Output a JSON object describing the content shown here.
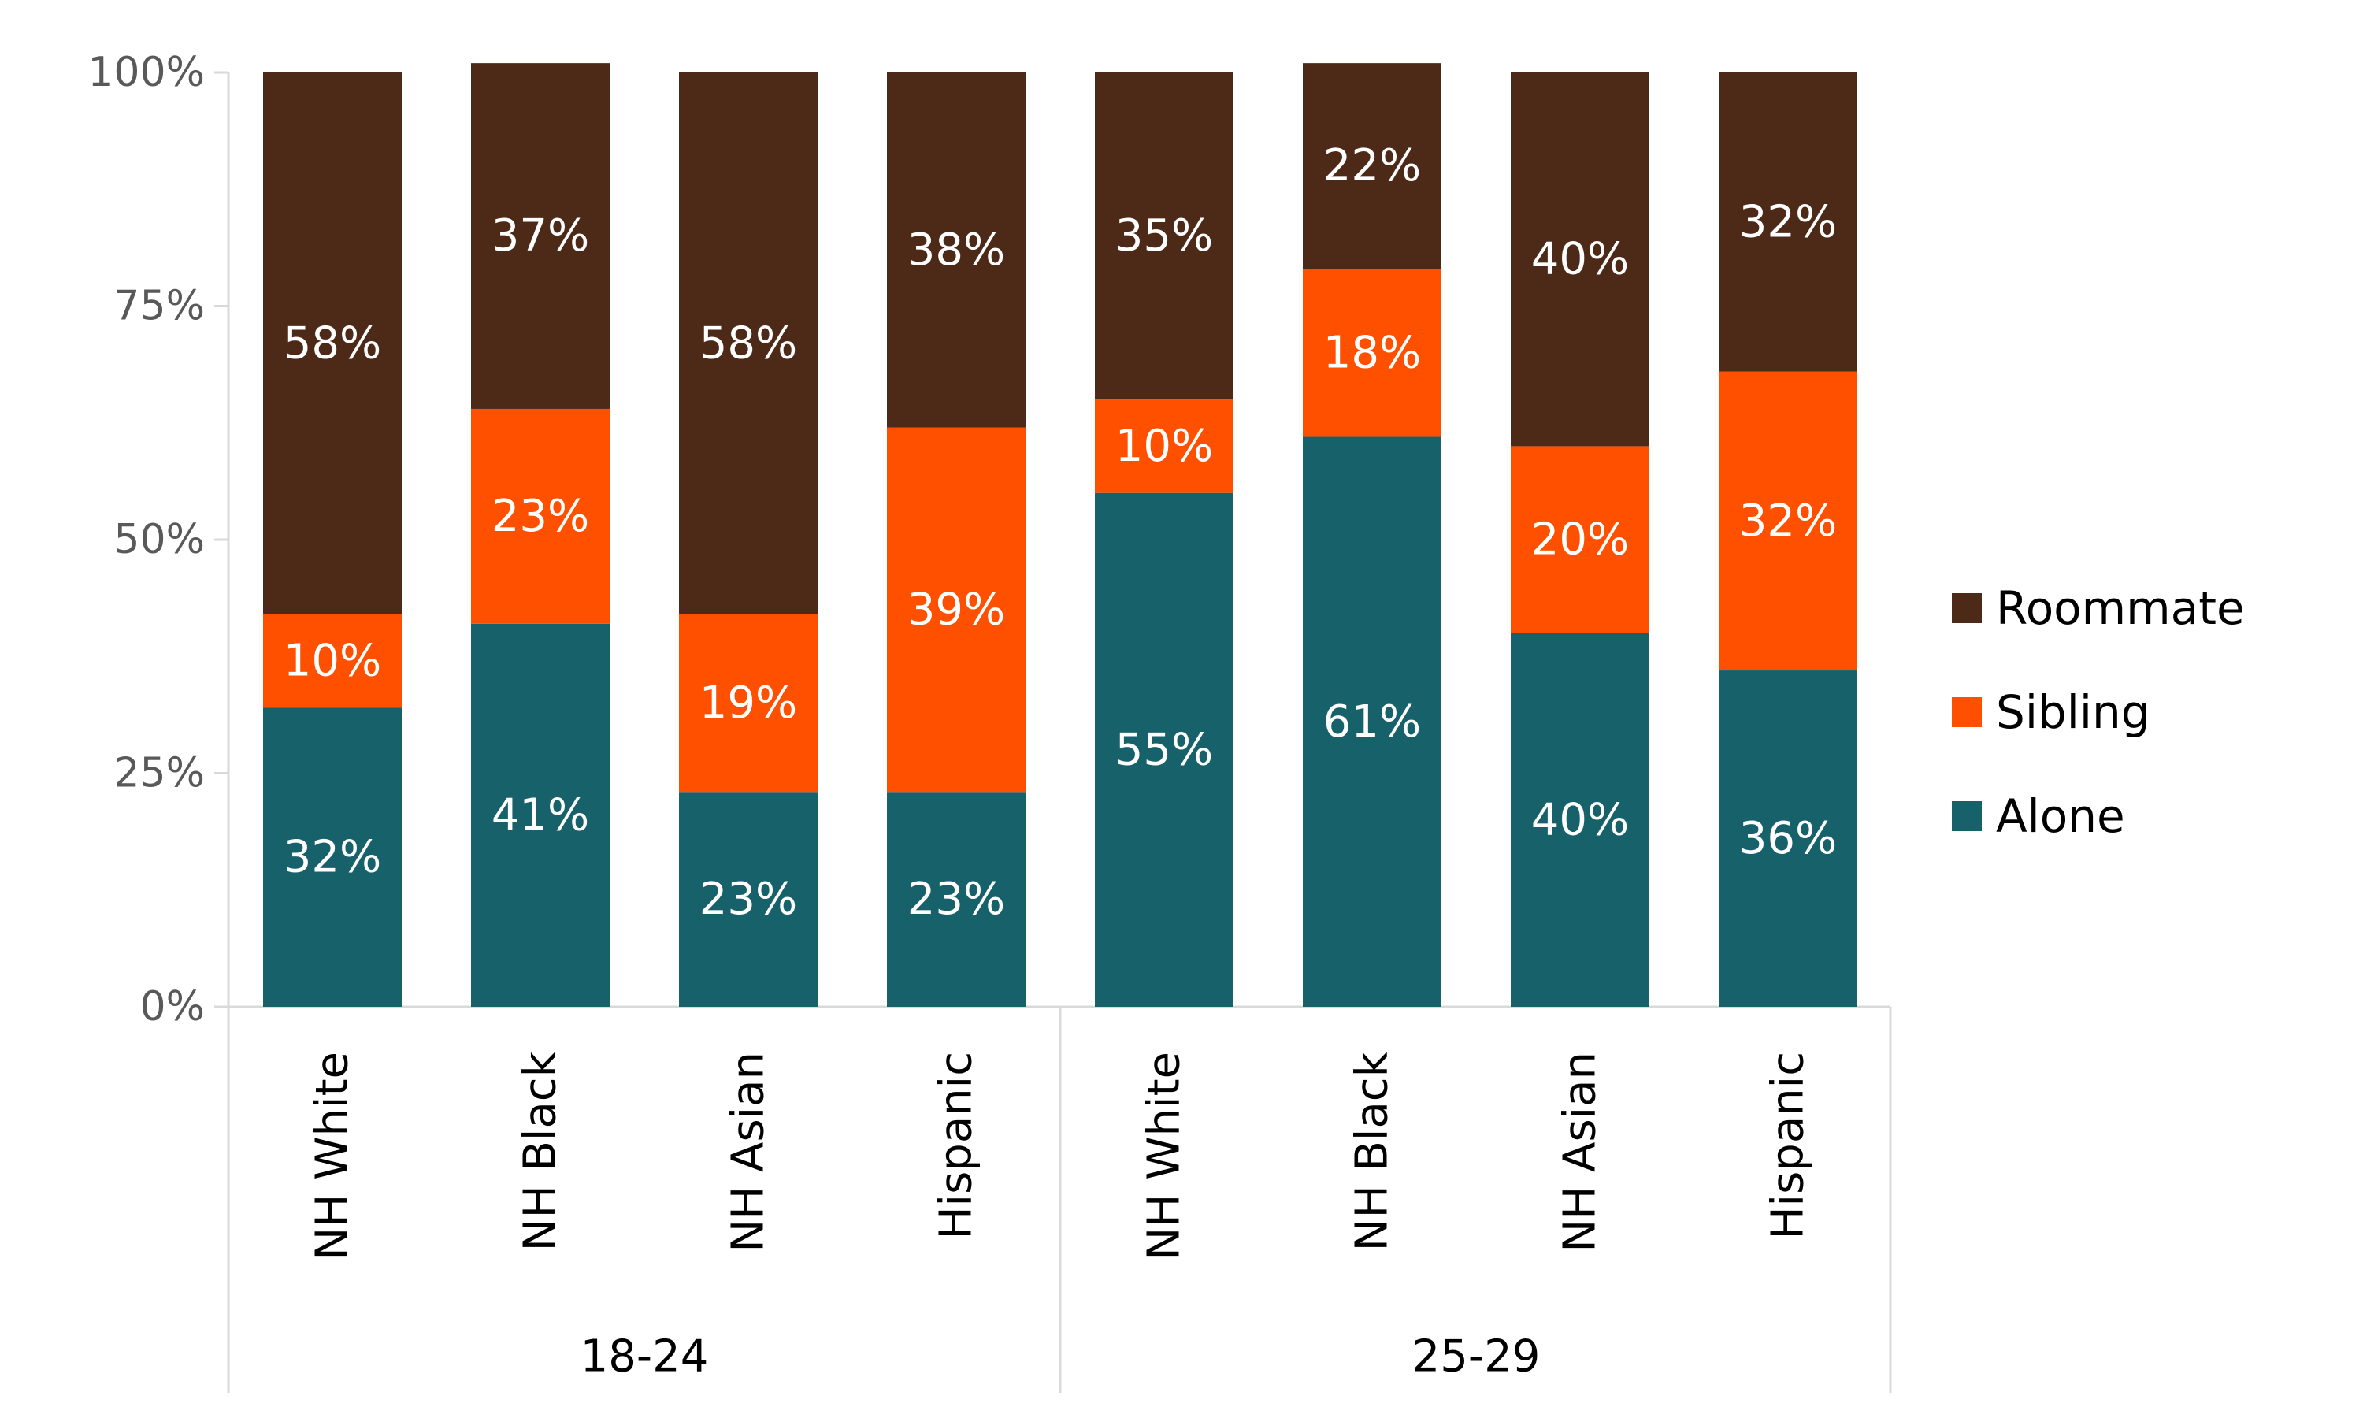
{
  "chart_data": {
    "type": "bar",
    "stacked": true,
    "percent_stacked": true,
    "categories": [
      "NH White",
      "NH Black",
      "NH Asian",
      "Hispanic",
      "NH White",
      "NH Black",
      "NH Asian",
      "Hispanic"
    ],
    "groups": [
      {
        "label": "18-24",
        "categories": [
          "NH White",
          "NH Black",
          "NH Asian",
          "Hispanic"
        ]
      },
      {
        "label": "25-29",
        "categories": [
          "NH White",
          "NH Black",
          "NH Asian",
          "Hispanic"
        ]
      }
    ],
    "series": [
      {
        "name": "Alone",
        "color": "#17616b",
        "values": [
          32,
          41,
          23,
          23,
          55,
          61,
          40,
          36
        ],
        "labels": [
          "32%",
          "41%",
          "23%",
          "23%",
          "55%",
          "61%",
          "40%",
          "36%"
        ]
      },
      {
        "name": "Sibling",
        "color": "#ff5000",
        "values": [
          10,
          23,
          19,
          39,
          10,
          18,
          20,
          32
        ],
        "labels": [
          "10%",
          "23%",
          "19%",
          "39%",
          "10%",
          "18%",
          "20%",
          "32%"
        ]
      },
      {
        "name": "Roommate",
        "color": "#4d2918",
        "values": [
          58,
          37,
          58,
          38,
          35,
          22,
          40,
          32
        ],
        "labels": [
          "58%",
          "37%",
          "58%",
          "38%",
          "35%",
          "22%",
          "40%",
          "32%"
        ]
      }
    ],
    "y_ticks": [
      "0%",
      "25%",
      "50%",
      "75%",
      "100%"
    ],
    "ylim": [
      0,
      100
    ],
    "legend": {
      "position": "right",
      "order": [
        "Roommate",
        "Sibling",
        "Alone"
      ]
    },
    "grid": false
  }
}
